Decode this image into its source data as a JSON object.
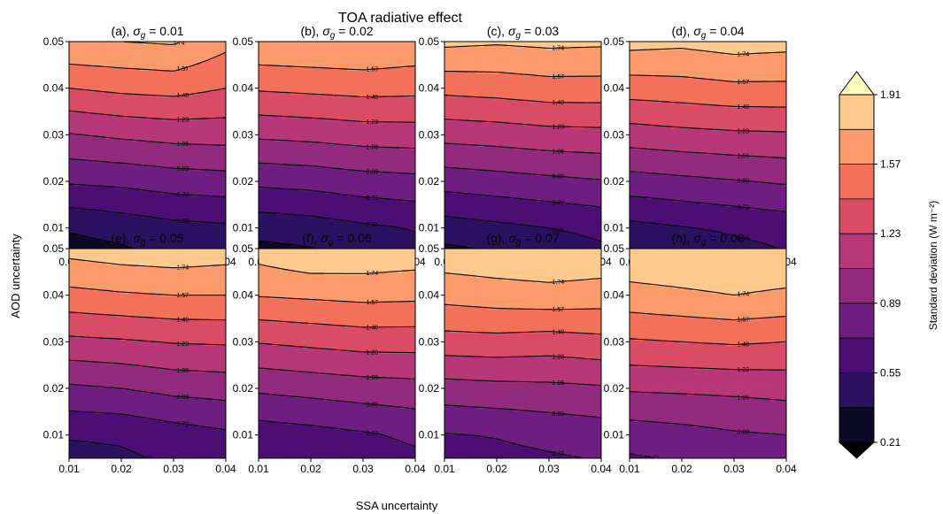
{
  "figure": {
    "title": "TOA radiative effect",
    "xlabel": "SSA uncertainty",
    "ylabel": "AOD uncertainty"
  },
  "colorbar": {
    "label": "Standard deviation (W m⁻²)",
    "levels": [
      0.21,
      0.38,
      0.55,
      0.72,
      0.89,
      1.06,
      1.23,
      1.4,
      1.57,
      1.74,
      1.91
    ],
    "tick_labels": [
      "0.21",
      "0.55",
      "0.89",
      "1.23",
      "1.57",
      "1.91"
    ],
    "colors": [
      "#0b0924",
      "#2b1160",
      "#4b0f74",
      "#6e1e81",
      "#922a7e",
      "#b73779",
      "#da4c66",
      "#f3705a",
      "#fb9a6a",
      "#fec98d"
    ],
    "under_color": "#000004",
    "over_color": "#fcfdbf"
  },
  "chart_data": [
    {
      "type": "heatmap",
      "title": "(a),  σg = 0.01",
      "panel_letter": "(a),",
      "sigma_label": "σ",
      "sigma_sub": "g",
      "sigma_value": "= 0.01",
      "x": [
        0.01,
        0.02,
        0.03,
        0.04
      ],
      "y": [
        0.005,
        0.01,
        0.02,
        0.03,
        0.04,
        0.05
      ],
      "xlim": [
        0.01,
        0.04
      ],
      "ylim": [
        0.005,
        0.05
      ],
      "z": [
        [
          0.3,
          0.35,
          0.43,
          0.47
        ],
        [
          0.4,
          0.45,
          0.5,
          0.52
        ],
        [
          0.74,
          0.76,
          0.8,
          0.82
        ],
        [
          1.05,
          1.09,
          1.12,
          1.13
        ],
        [
          1.4,
          1.44,
          1.46,
          1.4
        ],
        [
          1.73,
          1.74,
          1.76,
          1.62
        ]
      ]
    },
    {
      "type": "heatmap",
      "title": "(b),  σg = 0.02",
      "panel_letter": "(b),",
      "sigma_label": "σ",
      "sigma_sub": "g",
      "sigma_value": "= 0.02",
      "x": [
        0.01,
        0.02,
        0.03,
        0.04
      ],
      "y": [
        0.005,
        0.01,
        0.02,
        0.03,
        0.04,
        0.05
      ],
      "xlim": [
        0.01,
        0.04
      ],
      "ylim": [
        0.005,
        0.05
      ],
      "z": [
        [
          0.33,
          0.36,
          0.43,
          0.5
        ],
        [
          0.44,
          0.47,
          0.52,
          0.56
        ],
        [
          0.76,
          0.78,
          0.82,
          0.84
        ],
        [
          1.09,
          1.11,
          1.14,
          1.15
        ],
        [
          1.42,
          1.44,
          1.46,
          1.45
        ],
        [
          1.72,
          1.73,
          1.74,
          1.7
        ]
      ]
    },
    {
      "type": "heatmap",
      "title": "(c),  σg = 0.03",
      "panel_letter": "(c),",
      "sigma_label": "σ",
      "sigma_sub": "g",
      "sigma_value": "= 0.03",
      "x": [
        0.01,
        0.02,
        0.03,
        0.04
      ],
      "y": [
        0.005,
        0.01,
        0.02,
        0.03,
        0.04,
        0.05
      ],
      "xlim": [
        0.01,
        0.04
      ],
      "ylim": [
        0.005,
        0.05
      ],
      "z": [
        [
          0.34,
          0.38,
          0.46,
          0.52
        ],
        [
          0.47,
          0.51,
          0.55,
          0.59
        ],
        [
          0.79,
          0.82,
          0.85,
          0.88
        ],
        [
          1.12,
          1.14,
          1.17,
          1.18
        ],
        [
          1.45,
          1.47,
          1.5,
          1.5
        ],
        [
          1.78,
          1.76,
          1.78,
          1.77
        ]
      ]
    },
    {
      "type": "heatmap",
      "title": "(d),  σg = 0.04",
      "panel_letter": "(d),",
      "sigma_label": "σ",
      "sigma_sub": "g",
      "sigma_value": "= 0.04",
      "x": [
        0.01,
        0.02,
        0.03,
        0.04
      ],
      "y": [
        0.005,
        0.01,
        0.02,
        0.03,
        0.04,
        0.05
      ],
      "xlim": [
        0.01,
        0.04
      ],
      "ylim": [
        0.005,
        0.05
      ],
      "z": [
        [
          0.36,
          0.41,
          0.49,
          0.55
        ],
        [
          0.5,
          0.54,
          0.58,
          0.62
        ],
        [
          0.82,
          0.85,
          0.88,
          0.91
        ],
        [
          1.15,
          1.18,
          1.2,
          1.21
        ],
        [
          1.48,
          1.5,
          1.53,
          1.53
        ],
        [
          1.8,
          1.78,
          1.82,
          1.8
        ]
      ]
    },
    {
      "type": "heatmap",
      "title": "(e),  σg = 0.05",
      "panel_letter": "(e),",
      "sigma_label": "σ",
      "sigma_sub": "g",
      "sigma_value": "= 0.05",
      "x": [
        0.01,
        0.02,
        0.03,
        0.04
      ],
      "y": [
        0.005,
        0.01,
        0.02,
        0.03,
        0.04,
        0.05
      ],
      "xlim": [
        0.01,
        0.04
      ],
      "ylim": [
        0.005,
        0.05
      ],
      "z": [
        [
          0.48,
          0.52,
          0.58,
          0.63
        ],
        [
          0.57,
          0.58,
          0.64,
          0.69
        ],
        [
          0.86,
          0.89,
          0.94,
          0.96
        ],
        [
          1.19,
          1.21,
          1.24,
          1.25
        ],
        [
          1.52,
          1.55,
          1.57,
          1.57
        ],
        [
          1.8,
          1.84,
          1.86,
          1.83
        ]
      ]
    },
    {
      "type": "heatmap",
      "title": "(f),  σg = 0.06",
      "panel_letter": "(f),",
      "sigma_label": "σ",
      "sigma_sub": "g",
      "sigma_value": "= 0.06",
      "x": [
        0.01,
        0.02,
        0.03,
        0.04
      ],
      "y": [
        0.005,
        0.01,
        0.02,
        0.03,
        0.04,
        0.05
      ],
      "xlim": [
        0.01,
        0.04
      ],
      "ylim": [
        0.005,
        0.05
      ],
      "z": [
        [
          0.55,
          0.6,
          0.64,
          0.69
        ],
        [
          0.63,
          0.66,
          0.7,
          0.75
        ],
        [
          0.92,
          0.95,
          0.98,
          1.0
        ],
        [
          1.24,
          1.27,
          1.3,
          1.3
        ],
        [
          1.58,
          1.6,
          1.62,
          1.61
        ],
        [
          1.82,
          1.9,
          1.88,
          1.85
        ]
      ]
    },
    {
      "type": "heatmap",
      "title": "(g),  σg = 0.07",
      "panel_letter": "(g),",
      "sigma_label": "σ",
      "sigma_sub": "g",
      "sigma_value": "= 0.07",
      "x": [
        0.01,
        0.02,
        0.03,
        0.04
      ],
      "y": [
        0.005,
        0.01,
        0.02,
        0.03,
        0.04,
        0.05
      ],
      "xlim": [
        0.01,
        0.04
      ],
      "ylim": [
        0.005,
        0.05
      ],
      "z": [
        [
          0.63,
          0.67,
          0.7,
          0.73
        ],
        [
          0.71,
          0.73,
          0.77,
          0.8
        ],
        [
          0.99,
          1.01,
          1.02,
          1.04
        ],
        [
          1.33,
          1.34,
          1.32,
          1.35
        ],
        [
          1.63,
          1.66,
          1.68,
          1.66
        ],
        [
          1.86,
          1.88,
          1.9,
          1.88
        ]
      ]
    },
    {
      "type": "heatmap",
      "title": "(h),  σg = 0.08",
      "panel_letter": "(h),",
      "sigma_label": "σ",
      "sigma_sub": "g",
      "sigma_value": "= 0.08",
      "x": [
        0.01,
        0.02,
        0.03,
        0.04
      ],
      "y": [
        0.005,
        0.01,
        0.02,
        0.03,
        0.04,
        0.05
      ],
      "xlim": [
        0.01,
        0.04
      ],
      "ylim": [
        0.005,
        0.05
      ],
      "z": [
        [
          0.7,
          0.74,
          0.79,
          0.82
        ],
        [
          0.8,
          0.83,
          0.87,
          0.89
        ],
        [
          1.08,
          1.09,
          1.1,
          1.12
        ],
        [
          1.38,
          1.4,
          1.42,
          1.4
        ],
        [
          1.68,
          1.71,
          1.74,
          1.71
        ],
        [
          1.89,
          1.9,
          1.91,
          1.9
        ]
      ]
    }
  ]
}
